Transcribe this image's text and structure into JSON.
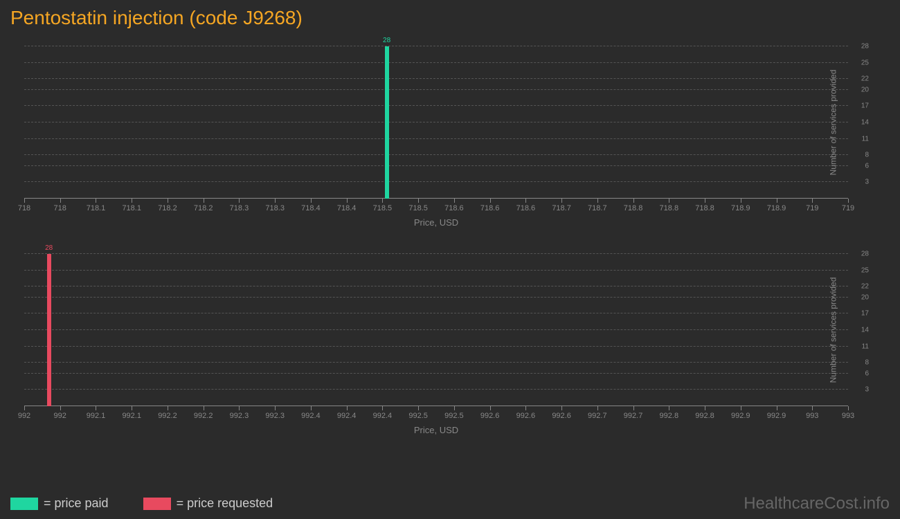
{
  "title": "Pentostatin injection (code J9268)",
  "background_color": "#2b2b2b",
  "grid_color": "#555555",
  "axis_color": "#888888",
  "tick_label_color": "#888888",
  "title_color": "#f5a623",
  "title_fontsize": 28,
  "chart1": {
    "type": "bar",
    "bar_color": "#1fd6a0",
    "bar_x": 718.44,
    "bar_value": 28,
    "bar_label": "28",
    "xlim": [
      718,
      719
    ],
    "x_ticks": [
      "718",
      "718",
      "718.1",
      "718.1",
      "718.2",
      "718.2",
      "718.3",
      "718.3",
      "718.4",
      "718.4",
      "718.5",
      "718.5",
      "718.6",
      "718.6",
      "718.6",
      "718.7",
      "718.7",
      "718.8",
      "718.8",
      "718.8",
      "718.9",
      "718.9",
      "719",
      "719"
    ],
    "x_label": "Price, USD",
    "y_label": "Number of services provided",
    "y_ticks": [
      3,
      6,
      8,
      11,
      14,
      17,
      20,
      22,
      25,
      28
    ],
    "ylim": [
      0,
      28
    ]
  },
  "chart2": {
    "type": "bar",
    "bar_color": "#e84a5f",
    "bar_x": 992.03,
    "bar_value": 28,
    "bar_label": "28",
    "xlim": [
      992,
      993
    ],
    "x_ticks": [
      "992",
      "992",
      "992.1",
      "992.1",
      "992.2",
      "992.2",
      "992.3",
      "992.3",
      "992.4",
      "992.4",
      "992.4",
      "992.5",
      "992.5",
      "992.6",
      "992.6",
      "992.6",
      "992.7",
      "992.7",
      "992.8",
      "992.8",
      "992.9",
      "992.9",
      "993",
      "993"
    ],
    "x_label": "Price, USD",
    "y_label": "Number of services provided",
    "y_ticks": [
      3,
      6,
      8,
      11,
      14,
      17,
      20,
      22,
      25,
      28
    ],
    "ylim": [
      0,
      28
    ]
  },
  "legend": {
    "items": [
      {
        "label": "= price paid",
        "color": "#1fd6a0"
      },
      {
        "label": "= price requested",
        "color": "#e84a5f"
      }
    ]
  },
  "watermark": "HealthcareCost.info"
}
